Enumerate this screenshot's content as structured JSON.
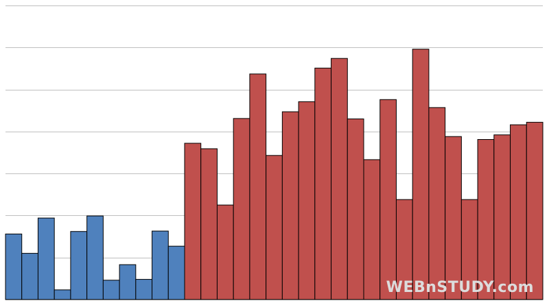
{
  "chart_data": {
    "type": "bar",
    "title": "",
    "xlabel": "",
    "ylabel": "",
    "ylim": [
      0,
      7
    ],
    "grid": true,
    "legend": "none",
    "colors": {
      "blue": "#4f81bd",
      "red": "#c0504d",
      "outline": "#000000",
      "grid": "#bfbfbf"
    },
    "values": [
      1.56,
      1.1,
      1.94,
      0.23,
      1.62,
      1.99,
      0.46,
      0.83,
      0.48,
      1.63,
      1.27,
      3.72,
      3.59,
      2.25,
      4.31,
      5.37,
      3.43,
      4.47,
      4.71,
      5.51,
      5.74,
      4.3,
      3.33,
      4.76,
      2.38,
      5.96,
      4.57,
      3.88,
      2.38,
      3.81,
      3.92,
      4.16,
      4.22
    ],
    "series_color_index": [
      "blue",
      "blue",
      "blue",
      "blue",
      "blue",
      "blue",
      "blue",
      "blue",
      "blue",
      "blue",
      "blue",
      "red",
      "red",
      "red",
      "red",
      "red",
      "red",
      "red",
      "red",
      "red",
      "red",
      "red",
      "red",
      "red",
      "red",
      "red",
      "red",
      "red",
      "red",
      "red",
      "red",
      "red",
      "red"
    ]
  },
  "watermark": "WEBnSTUDY.com"
}
